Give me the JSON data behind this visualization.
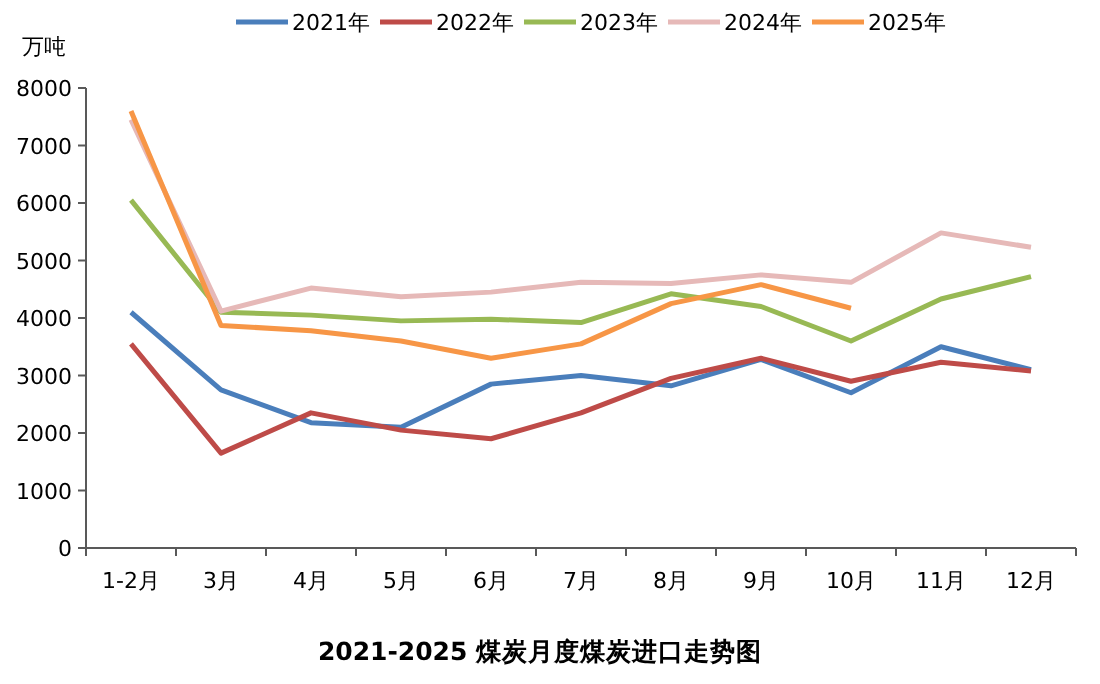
{
  "chart_data": {
    "type": "line",
    "title": "2021-2025 煤炭月度煤炭进口走势图",
    "ylabel": "万吨",
    "categories": [
      "1-2月",
      "3月",
      "4月",
      "5月",
      "6月",
      "7月",
      "8月",
      "9月",
      "10月",
      "11月",
      "12月"
    ],
    "series": [
      {
        "name": "2021年",
        "color": "#4a7ebb",
        "values": [
          4100,
          2750,
          2180,
          2100,
          2850,
          3000,
          2820,
          3280,
          2700,
          3500,
          3100
        ]
      },
      {
        "name": "2022年",
        "color": "#be4b48",
        "values": [
          3550,
          1650,
          2350,
          2050,
          1900,
          2350,
          2950,
          3300,
          2900,
          3230,
          3080
        ]
      },
      {
        "name": "2023年",
        "color": "#98b954",
        "values": [
          6050,
          4100,
          4050,
          3950,
          3980,
          3920,
          4420,
          4200,
          3600,
          4330,
          4720
        ]
      },
      {
        "name": "2024年",
        "color": "#e6b9b8",
        "values": [
          7450,
          4120,
          4520,
          4370,
          4450,
          4620,
          4600,
          4750,
          4620,
          5480,
          5230
        ]
      },
      {
        "name": "2025年",
        "color": "#f79646",
        "values": [
          7600,
          3870,
          3780,
          3600,
          3300,
          3550,
          4250,
          4580,
          4170,
          null,
          null
        ]
      }
    ],
    "ylim": [
      0,
      8000
    ],
    "yticks": [
      0,
      1000,
      2000,
      3000,
      4000,
      5000,
      6000,
      7000,
      8000
    ],
    "grid": false,
    "legend": "top",
    "marker": "none",
    "line_style": "solid"
  }
}
